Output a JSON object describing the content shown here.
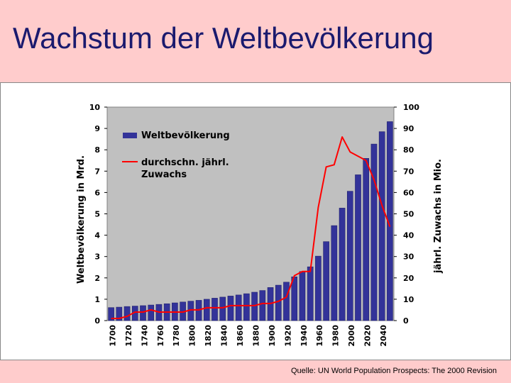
{
  "title": "Wachstum der Weltbevölkerung",
  "source": "Quelle: UN World Population Prospects: The 2000 Revision",
  "colors": {
    "background": "#ffcccc",
    "plot_area": "#c0c0c0",
    "bars": "#333399",
    "line": "#ff0000",
    "title": "#1a1a6e"
  },
  "chart_data": {
    "type": "bar+line",
    "ylabel": "Weltbevölkerung in Mrd.",
    "y2label": "jährl. Zuwachs in Mio.",
    "ylim": [
      0,
      10
    ],
    "y2lim": [
      0,
      100
    ],
    "y_ticks": [
      "0",
      "1",
      "2",
      "3",
      "4",
      "5",
      "6",
      "7",
      "8",
      "9",
      "10"
    ],
    "y2_ticks": [
      "0",
      "10",
      "20",
      "30",
      "40",
      "50",
      "60",
      "70",
      "80",
      "90",
      "100"
    ],
    "x_tick_labels": [
      "1700",
      "1720",
      "1740",
      "1760",
      "1780",
      "1800",
      "1820",
      "1840",
      "1860",
      "1880",
      "1900",
      "1920",
      "1940",
      "1960",
      "1980",
      "2000",
      "2020",
      "2040"
    ],
    "legend_placement": "top-left inside plot",
    "series": [
      {
        "name": "Weltbevölkerung",
        "kind": "bar",
        "axis": "left",
        "x": [
          1700,
          1710,
          1720,
          1730,
          1740,
          1750,
          1760,
          1770,
          1780,
          1790,
          1800,
          1810,
          1820,
          1830,
          1840,
          1850,
          1860,
          1870,
          1880,
          1890,
          1900,
          1910,
          1920,
          1930,
          1940,
          1950,
          1960,
          1970,
          1980,
          1990,
          2000,
          2010,
          2020,
          2030,
          2040,
          2050
        ],
        "values": [
          0.61,
          0.63,
          0.66,
          0.68,
          0.7,
          0.73,
          0.76,
          0.79,
          0.83,
          0.87,
          0.91,
          0.95,
          1.0,
          1.05,
          1.1,
          1.15,
          1.2,
          1.26,
          1.33,
          1.41,
          1.55,
          1.66,
          1.8,
          2.05,
          2.3,
          2.52,
          3.02,
          3.7,
          4.45,
          5.27,
          6.06,
          6.83,
          7.6,
          8.27,
          8.85,
          9.32
        ]
      },
      {
        "name": "durchschn. jährl. Zuwachs",
        "kind": "line",
        "axis": "right",
        "x": [
          1700,
          1710,
          1720,
          1730,
          1740,
          1750,
          1760,
          1770,
          1780,
          1790,
          1800,
          1810,
          1820,
          1830,
          1840,
          1850,
          1860,
          1870,
          1880,
          1890,
          1900,
          1910,
          1920,
          1930,
          1940,
          1950,
          1960,
          1970,
          1980,
          1990,
          2000,
          2010,
          2020,
          2030,
          2040,
          2050
        ],
        "values": [
          1,
          1,
          2,
          4,
          4,
          5,
          4,
          4,
          4,
          4,
          5,
          5,
          6,
          6,
          6,
          7,
          7,
          7,
          7,
          8,
          8,
          9,
          11,
          21,
          23,
          23,
          53,
          72,
          73,
          86,
          79,
          77,
          75,
          66,
          54,
          44
        ]
      }
    ]
  }
}
